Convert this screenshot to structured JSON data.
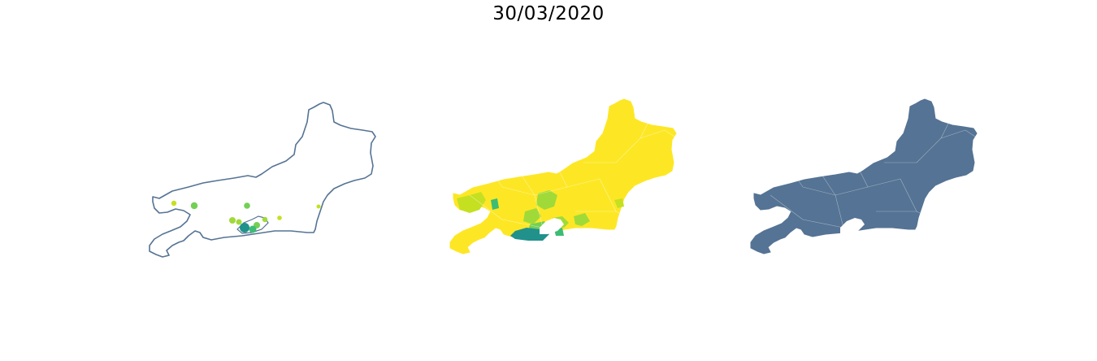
{
  "figure": {
    "title": "30/03/2020"
  },
  "colors": {
    "state_blue": "#557394",
    "yellow": "#fde725",
    "yellow_green": "#c5e021",
    "light_green": "#a0da39",
    "green": "#73d055",
    "sea_green": "#3dbc74",
    "teal": "#21918c",
    "white": "#ffffff"
  },
  "panels": [
    {
      "name": "points-map",
      "style": "outline-with-bubbles"
    },
    {
      "name": "choropleth-map",
      "style": "filled-by-value"
    },
    {
      "name": "municipality-boundaries-map",
      "style": "uniform-fill"
    }
  ]
}
